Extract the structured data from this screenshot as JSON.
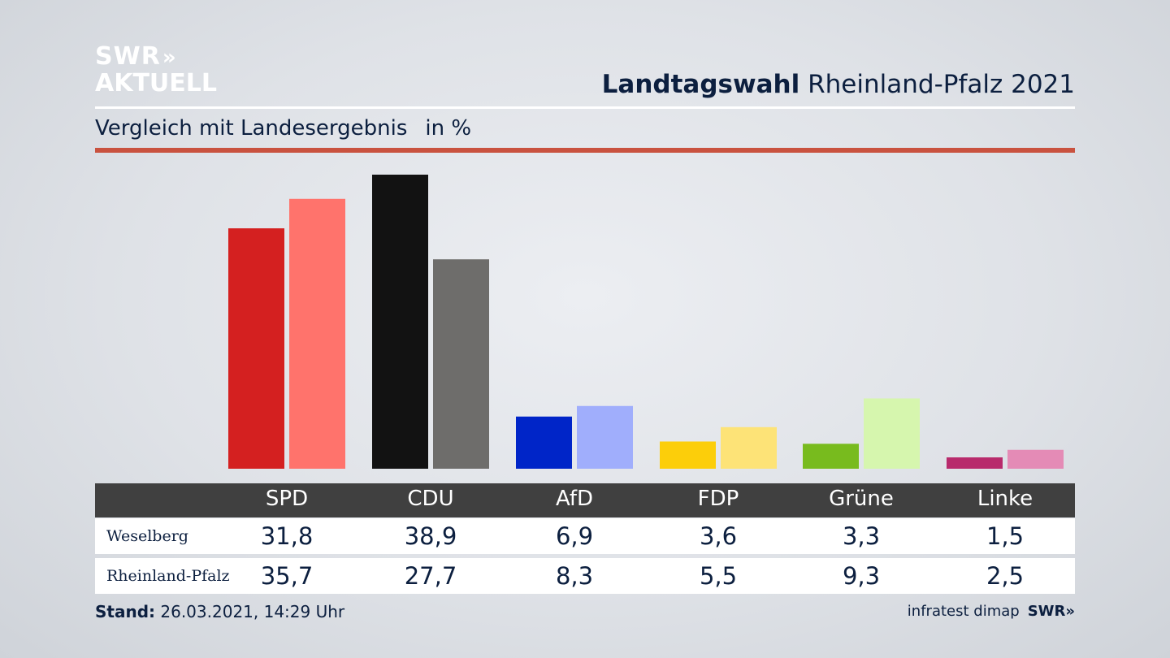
{
  "logo": {
    "line1": "SWR",
    "line1_chevrons": "»",
    "line2": "AKTUELL"
  },
  "header": {
    "title_bold": "Landtagswahl",
    "title_rest": "Rheinland-Pfalz 2021",
    "subtitle": "Vergleich mit Landesergebnis",
    "unit": "in %"
  },
  "table": {
    "row1_label": "Weselberg",
    "row2_label": "Rheinland-Pfalz"
  },
  "footer": {
    "stand_label": "Stand:",
    "stand_value": "26.03.2021, 14:29 Uhr",
    "source": "infratest dimap",
    "source_logo": "SWR»"
  },
  "chart_data": {
    "type": "bar",
    "categories": [
      "SPD",
      "CDU",
      "AfD",
      "FDP",
      "Grüne",
      "Linke"
    ],
    "series": [
      {
        "name": "Weselberg",
        "values": [
          31.8,
          38.9,
          6.9,
          3.6,
          3.3,
          1.5
        ],
        "display": [
          "31,8",
          "38,9",
          "6,9",
          "3,6",
          "3,3",
          "1,5"
        ]
      },
      {
        "name": "Rheinland-Pfalz",
        "values": [
          35.7,
          27.7,
          8.3,
          5.5,
          9.3,
          2.5
        ],
        "display": [
          "35,7",
          "27,7",
          "8,3",
          "5,5",
          "9,3",
          "2,5"
        ]
      }
    ],
    "colors": {
      "Weselberg": [
        "#d42020",
        "#121212",
        "#0025c8",
        "#fcce0a",
        "#78bb1e",
        "#b82a6c"
      ],
      "Rheinland-Pfalz": [
        "#ff736c",
        "#6e6d6b",
        "#a0aefc",
        "#fde377",
        "#d6f6ae",
        "#e48bb6"
      ]
    },
    "ylim": [
      0,
      38.9
    ],
    "grid": false,
    "legend": "table below chart"
  }
}
